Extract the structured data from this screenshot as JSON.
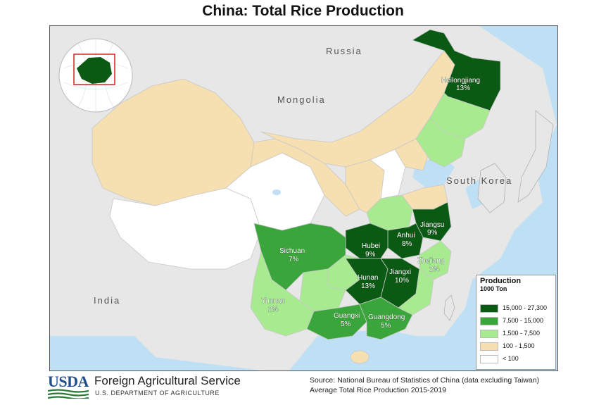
{
  "title": "China: Total Rice Production",
  "countries": {
    "russia": "Russia",
    "mongolia": "Mongolia",
    "south_korea": "South Korea",
    "india": "India"
  },
  "provinces": [
    {
      "name": "Heilongjiang",
      "share": "13%",
      "class": "15,000 - 27,300"
    },
    {
      "name": "Jiangsu",
      "share": "9%",
      "class": "15,000 - 27,300"
    },
    {
      "name": "Anhui",
      "share": "8%",
      "class": "15,000 - 27,300"
    },
    {
      "name": "Hubei",
      "share": "9%",
      "class": "15,000 - 27,300"
    },
    {
      "name": "Sichuan",
      "share": "7%",
      "class": "7,500 - 15,000"
    },
    {
      "name": "Zhejiang",
      "share": "2%",
      "class": "1,500 - 7,500"
    },
    {
      "name": "Hunan",
      "share": "13%",
      "class": "15,000 - 27,300"
    },
    {
      "name": "Jiangxi",
      "share": "10%",
      "class": "15,000 - 27,300"
    },
    {
      "name": "Yunnan",
      "share": "2%",
      "class": "1,500 - 7,500"
    },
    {
      "name": "Guangxi",
      "share": "5%",
      "class": "7,500 - 15,000"
    },
    {
      "name": "Guangdong",
      "share": "5%",
      "class": "7,500 - 15,000"
    }
  ],
  "legend": {
    "title": "Production",
    "subtitle": "1000 Ton",
    "items": [
      {
        "label": "15,000 - 27,300",
        "color": "#0b5a14"
      },
      {
        "label": "7,500 - 15,000",
        "color": "#3aa53a"
      },
      {
        "label": "1,500 - 7,500",
        "color": "#a8ea8f"
      },
      {
        "label": "100 - 1,500",
        "color": "#f6dfb0"
      },
      {
        "label": "< 100",
        "color": "#ffffff"
      }
    ]
  },
  "colors": {
    "water": "#bfe0f4",
    "land": "#e7e7e7",
    "inset_frame": "#d62020"
  },
  "footer": {
    "logo_text": "USDA",
    "agency": "Foreign Agricultural Service",
    "department": "U.S. DEPARTMENT OF AGRICULTURE",
    "source": "Source: National Bureau of Statistics of China (data excluding Taiwan)",
    "period": "Average Total Rice Production 2015-2019"
  }
}
